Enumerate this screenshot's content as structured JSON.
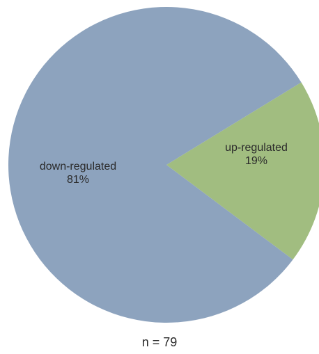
{
  "chart_data": {
    "type": "pie",
    "slices": [
      {
        "label": "down-regulated",
        "value": 81,
        "value_label": "81%",
        "color": "#8da3be"
      },
      {
        "label": "up-regulated",
        "value": 19,
        "value_label": "19%",
        "color": "#a1bd80"
      }
    ],
    "note": "n = 79",
    "legend": "none"
  }
}
